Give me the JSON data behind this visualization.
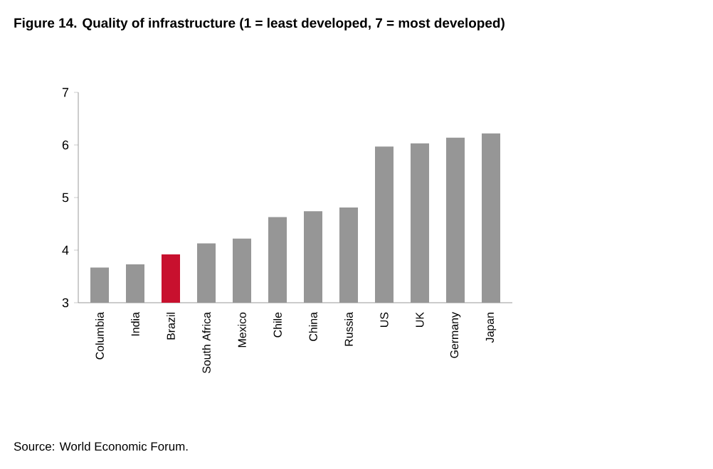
{
  "chart_data": {
    "type": "bar",
    "title": "Figure 14. Quality of infrastructure (1 = least developed, 7 = most developed)",
    "categories": [
      "Columbia",
      "India",
      "Brazil",
      "South Africa",
      "Mexico",
      "Chile",
      "China",
      "Russia",
      "US",
      "UK",
      "Germany",
      "Japan"
    ],
    "values": [
      3.67,
      3.73,
      3.92,
      4.13,
      4.22,
      4.63,
      4.74,
      4.81,
      5.97,
      6.03,
      6.14,
      6.22
    ],
    "colors": [
      "#969696",
      "#969696",
      "#c8102e",
      "#969696",
      "#969696",
      "#969696",
      "#969696",
      "#969696",
      "#969696",
      "#969696",
      "#969696",
      "#969696"
    ],
    "ylim": [
      3,
      7
    ],
    "yticks": [
      3,
      4,
      5,
      6,
      7
    ],
    "annotations": [
      "Source: World Economic Forum."
    ]
  }
}
